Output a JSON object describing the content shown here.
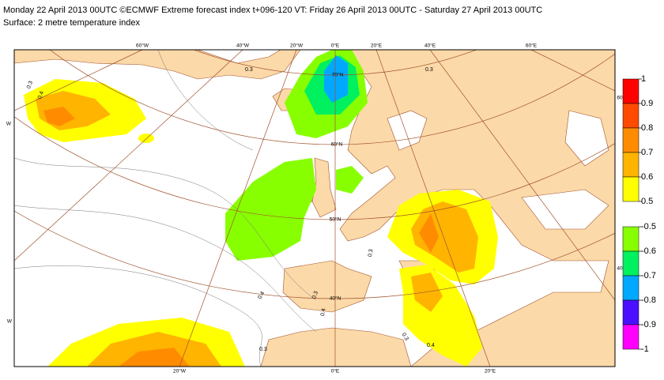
{
  "header": {
    "line1": "Monday 22 April 2013 00UTC ©ECMWF Extreme forecast index t+096-120 VT: Friday 26 April 2013 00UTC - Saturday 27 April 2013 00UTC",
    "line2": "Surface: 2 metre temperature index"
  },
  "graticule": {
    "top": [
      "60°W",
      "40°W",
      "20°W",
      "0°E",
      "20°E",
      "40°E",
      "60°E"
    ],
    "bottom": [
      "20°W",
      "0°E",
      "20°E"
    ],
    "lat": [
      "70°N",
      "60°N",
      "50°N",
      "40°N"
    ],
    "left": [
      "W",
      "W"
    ],
    "right": [
      "60",
      "40"
    ]
  },
  "contour_labels": [
    "0.3",
    "0.4",
    "0.3",
    "0.3",
    "0.4",
    "0.3",
    "0.3",
    "0.3",
    "0.4",
    "0.3",
    "0.4"
  ],
  "colorbar": {
    "warm": {
      "ticks": [
        1,
        0.9,
        0.8,
        0.7,
        0.6,
        0.5
      ],
      "colors": [
        "#ff0000",
        "#ff4a00",
        "#ff8c00",
        "#ffb400",
        "#ffff00"
      ]
    },
    "cold": {
      "ticks": [
        -0.5,
        -0.6,
        -0.7,
        -0.8,
        -0.9,
        -1
      ],
      "colors": [
        "#88ff00",
        "#00f060",
        "#00a8ff",
        "#4a10ff",
        "#ff00ff"
      ]
    }
  }
}
